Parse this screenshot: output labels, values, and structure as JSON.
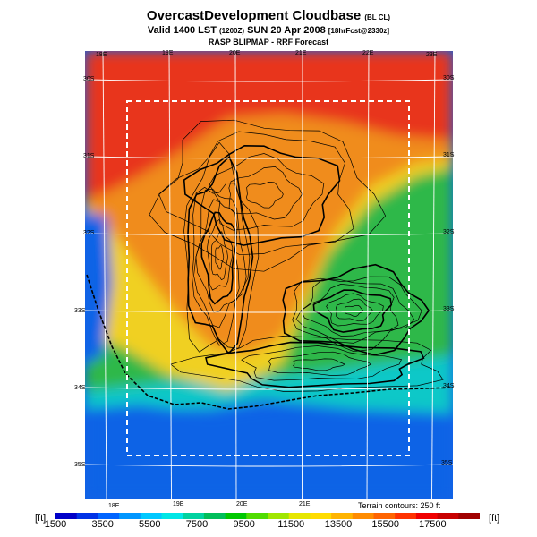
{
  "header": {
    "title": "OvercastDevelopment Cloudbase",
    "title_suffix": "(BL CL)",
    "valid_main": "Valid 1400 LST",
    "valid_utc": "(1200Z)",
    "valid_date": "SUN 20 Apr 2008",
    "valid_fcst": "[18hrFcst@2330z]",
    "subtitle": "RASP BLIPMAP - RRF Forecast"
  },
  "map": {
    "lon_labels_top": [
      "18E",
      "19E",
      "20E",
      "21E",
      "22E",
      "23E"
    ],
    "lon_labels_bottom": [
      "18E",
      "19E",
      "20E",
      "21E"
    ],
    "lat_labels_left": [
      "30S",
      "31S",
      "32S",
      "33S",
      "34S",
      "35S"
    ],
    "lat_labels_right": [
      "30S",
      "31S",
      "32S",
      "33S",
      "34S",
      "35S"
    ],
    "terrain_note": "Terrain contours: 250 ft",
    "colors": {
      "coast_blue": "#0b63e6",
      "teal": "#10c8c8",
      "green": "#2fb84a",
      "yellow": "#f0d020",
      "orange": "#f08c1e",
      "red": "#e8341e",
      "contour": "#000000",
      "domain_box": "#ffffff"
    }
  },
  "colorbar": {
    "unit_left": "[ft]",
    "unit_right": "[ft]",
    "labels": [
      "1500",
      "3500",
      "5500",
      "7500",
      "9500",
      "11500",
      "13500",
      "15500",
      "17500"
    ],
    "min": 1500,
    "max": 19500,
    "colors": [
      "#0000c8",
      "#0032e6",
      "#0064ff",
      "#0096ff",
      "#00c8ff",
      "#00e6e6",
      "#00d2a0",
      "#00be5a",
      "#00c800",
      "#50dc00",
      "#a0e600",
      "#e6e600",
      "#ffdc00",
      "#ffb400",
      "#ff8c00",
      "#ff6400",
      "#ff3200",
      "#f00000",
      "#c80000",
      "#a00000"
    ]
  }
}
